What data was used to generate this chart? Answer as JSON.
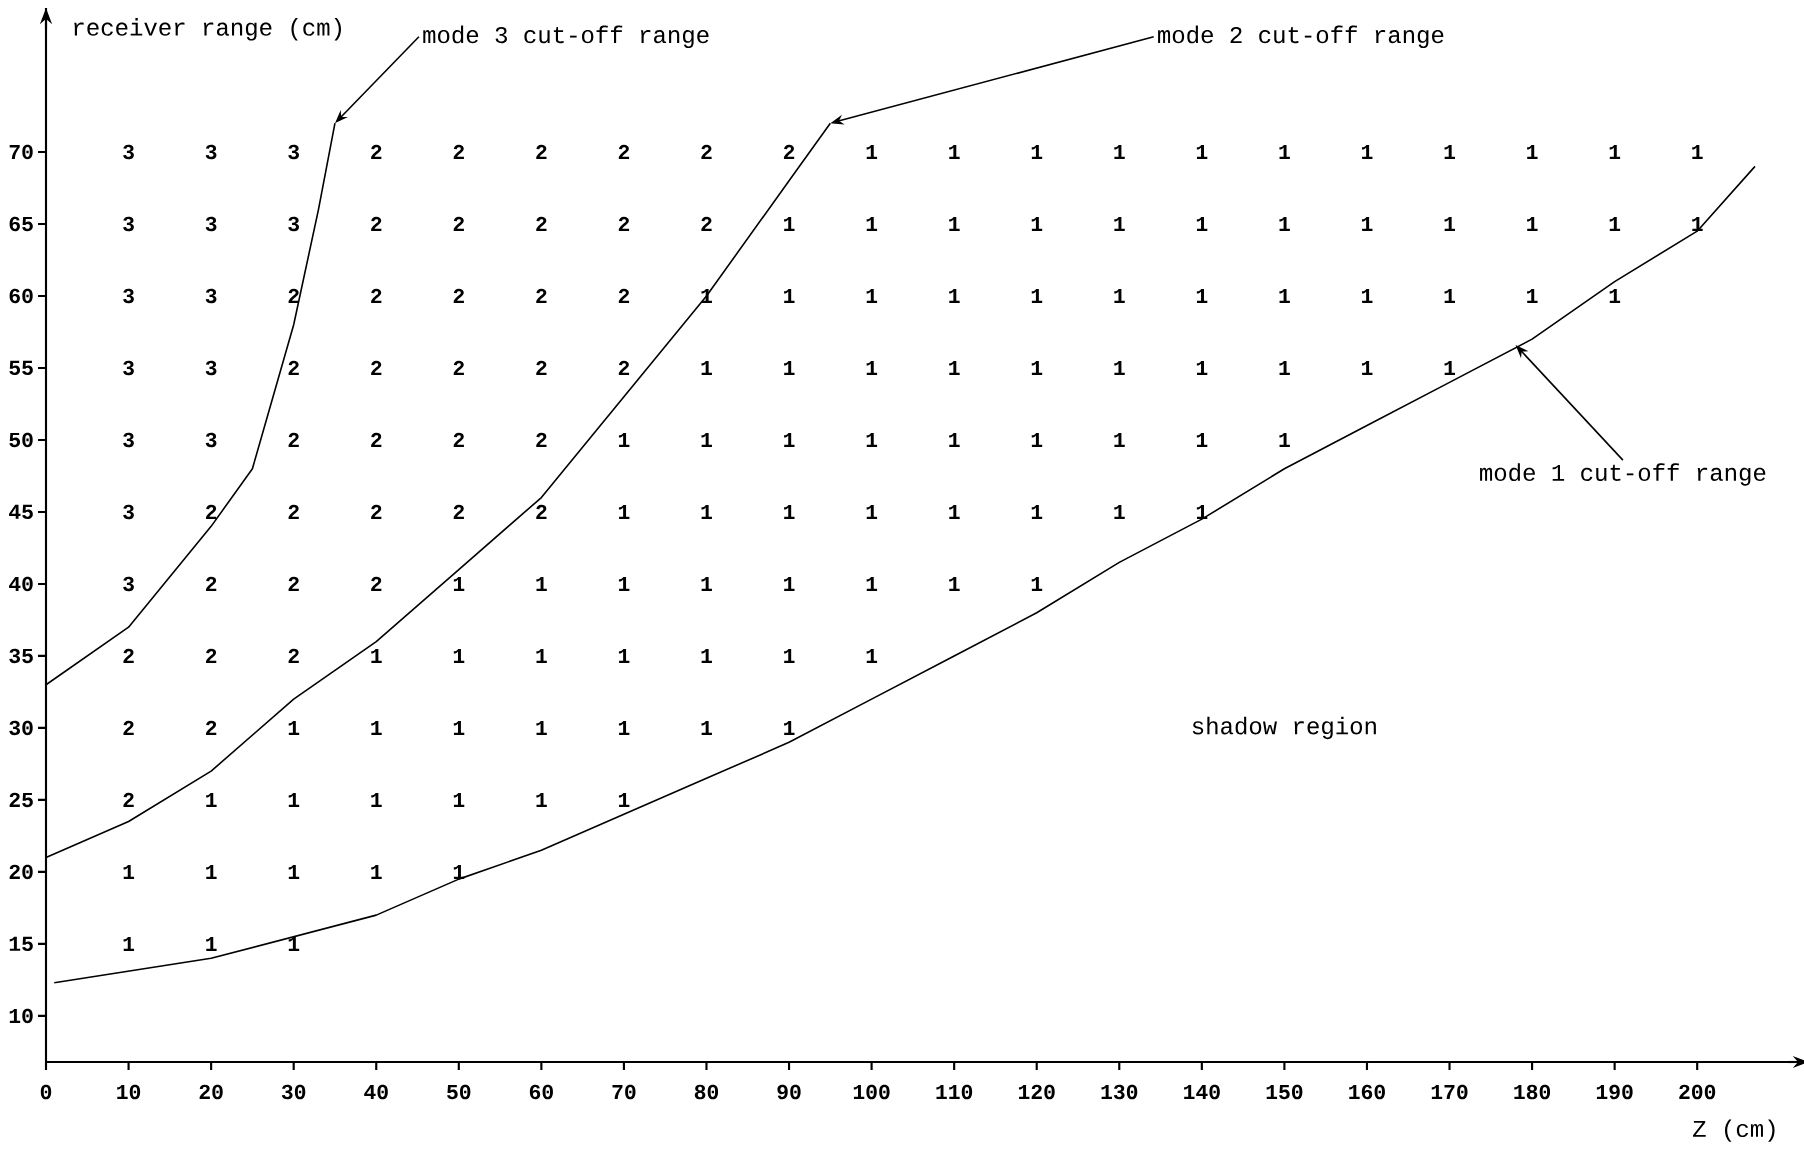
{
  "chart_data": [
    {
      "type": "heatmap",
      "data_labels": true,
      "categories": [
        "0",
        "10",
        "20",
        "30",
        "40",
        "50",
        "60",
        "70",
        "80",
        "90",
        "100",
        "110",
        "120",
        "130",
        "140",
        "150",
        "160",
        "170",
        "180",
        "190",
        "200"
      ],
      "y_categories": [
        "70",
        "65",
        "60",
        "55",
        "50",
        "45",
        "40",
        "35",
        "30",
        "25",
        "20",
        "15",
        "10"
      ],
      "cells": [
        [
          null,
          3,
          3,
          3,
          2,
          2,
          2,
          2,
          2,
          2,
          1,
          1,
          1,
          1,
          1,
          1,
          1,
          1,
          1,
          1,
          1
        ],
        [
          null,
          3,
          3,
          3,
          2,
          2,
          2,
          2,
          2,
          1,
          1,
          1,
          1,
          1,
          1,
          1,
          1,
          1,
          1,
          1,
          1
        ],
        [
          null,
          3,
          3,
          2,
          2,
          2,
          2,
          2,
          1,
          1,
          1,
          1,
          1,
          1,
          1,
          1,
          1,
          1,
          1,
          1,
          null
        ],
        [
          null,
          3,
          3,
          2,
          2,
          2,
          2,
          2,
          1,
          1,
          1,
          1,
          1,
          1,
          1,
          1,
          1,
          1,
          null,
          null,
          null
        ],
        [
          null,
          3,
          3,
          2,
          2,
          2,
          2,
          1,
          1,
          1,
          1,
          1,
          1,
          1,
          1,
          1,
          null,
          null,
          null,
          null,
          null
        ],
        [
          null,
          3,
          2,
          2,
          2,
          2,
          2,
          1,
          1,
          1,
          1,
          1,
          1,
          1,
          1,
          null,
          null,
          null,
          null,
          null,
          null
        ],
        [
          null,
          3,
          2,
          2,
          2,
          1,
          1,
          1,
          1,
          1,
          1,
          1,
          1,
          null,
          null,
          null,
          null,
          null,
          null,
          null,
          null
        ],
        [
          null,
          2,
          2,
          2,
          1,
          1,
          1,
          1,
          1,
          1,
          1,
          null,
          null,
          null,
          null,
          null,
          null,
          null,
          null,
          null,
          null
        ],
        [
          null,
          2,
          2,
          1,
          1,
          1,
          1,
          1,
          1,
          1,
          null,
          null,
          null,
          null,
          null,
          null,
          null,
          null,
          null,
          null,
          null
        ],
        [
          null,
          2,
          1,
          1,
          1,
          1,
          1,
          1,
          null,
          null,
          null,
          null,
          null,
          null,
          null,
          null,
          null,
          null,
          null,
          null,
          null
        ],
        [
          null,
          1,
          1,
          1,
          1,
          1,
          null,
          null,
          null,
          null,
          null,
          null,
          null,
          null,
          null,
          null,
          null,
          null,
          null,
          null,
          null
        ],
        [
          null,
          1,
          1,
          1,
          null,
          null,
          null,
          null,
          null,
          null,
          null,
          null,
          null,
          null,
          null,
          null,
          null,
          null,
          null,
          null,
          null
        ],
        [
          null,
          null,
          null,
          null,
          null,
          null,
          null,
          null,
          null,
          null,
          null,
          null,
          null,
          null,
          null,
          null,
          null,
          null,
          null,
          null,
          null
        ]
      ]
    },
    {
      "type": "line",
      "xlabel": "Z (cm)",
      "ylabel": "receiver range (cm)",
      "tick_labels": false,
      "xlim": [
        0,
        211
      ],
      "ylim": [
        6.8,
        80
      ],
      "xticks": [
        0,
        10,
        20,
        30,
        40,
        50,
        60,
        70,
        80,
        90,
        100,
        110,
        120,
        130,
        140,
        150,
        160,
        170,
        180,
        190,
        200
      ],
      "yticks": [
        10,
        15,
        20,
        25,
        30,
        35,
        40,
        45,
        50,
        55,
        60,
        65,
        70
      ],
      "marker": "none",
      "line_style": "solid",
      "series": [
        {
          "color": "#000000",
          "x": [
            0,
            10,
            20,
            25,
            30,
            33,
            35
          ],
          "values": [
            33,
            37,
            44,
            48,
            58,
            66,
            72
          ]
        },
        {
          "color": "#000000",
          "x": [
            0,
            10,
            20,
            30,
            40,
            50,
            60,
            70,
            80,
            90,
            95
          ],
          "values": [
            21,
            23.5,
            27,
            32,
            36,
            41,
            46,
            53,
            60,
            68,
            72
          ]
        },
        {
          "color": "#000000",
          "x": [
            1,
            20,
            30,
            40,
            50,
            60,
            70,
            80,
            90,
            100,
            110,
            120,
            130,
            140,
            150,
            160,
            170,
            180,
            190,
            200,
            207
          ],
          "values": [
            12.3,
            14,
            15.5,
            17,
            19.5,
            21.5,
            24,
            26.5,
            29,
            32,
            35,
            38,
            41.5,
            44.5,
            48,
            51,
            54,
            57,
            61,
            64.5,
            69
          ]
        }
      ],
      "annotations": [
        {
          "text": "mode 3 cut-off range",
          "x": 35,
          "y": 72
        },
        {
          "text": "mode 2 cut-off range",
          "x": 95,
          "y": 72
        },
        {
          "text": "mode 1 cut-off range",
          "x": 178,
          "y": 56.6
        },
        "shadow region"
      ]
    }
  ]
}
